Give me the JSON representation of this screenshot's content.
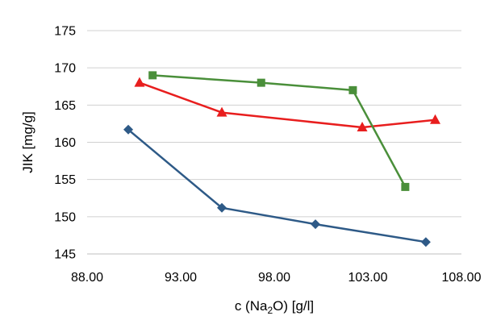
{
  "chart_data": {
    "type": "line",
    "xlabel": "c (Na₂O) [g/l]",
    "ylabel": "JIK [mg/g]",
    "xlim": [
      88,
      108
    ],
    "ylim": [
      145,
      175
    ],
    "x_ticks": [
      88,
      93,
      98,
      103,
      108
    ],
    "x_tick_labels": [
      "88.00",
      "93.00",
      "98.00",
      "103.00",
      "108.00"
    ],
    "y_ticks": [
      145,
      150,
      155,
      160,
      165,
      170,
      175
    ],
    "y_tick_labels": [
      "145",
      "150",
      "155",
      "160",
      "165",
      "170",
      "175"
    ],
    "grid": "horizontal",
    "series": [
      {
        "color": "#2e5a87",
        "marker": "diamond",
        "points": [
          [
            90.2,
            161.7
          ],
          [
            95.2,
            151.2
          ],
          [
            100.2,
            149.0
          ],
          [
            106.1,
            146.6
          ]
        ]
      },
      {
        "color": "#e81e1e",
        "marker": "triangle",
        "points": [
          [
            90.8,
            168.0
          ],
          [
            95.2,
            164.0
          ],
          [
            102.7,
            162.0
          ],
          [
            106.6,
            163.0
          ]
        ]
      },
      {
        "color": "#4a8f3a",
        "marker": "square",
        "points": [
          [
            91.5,
            169.0
          ],
          [
            97.3,
            168.0
          ],
          [
            102.2,
            167.0
          ],
          [
            105.0,
            154.0
          ]
        ]
      }
    ]
  }
}
